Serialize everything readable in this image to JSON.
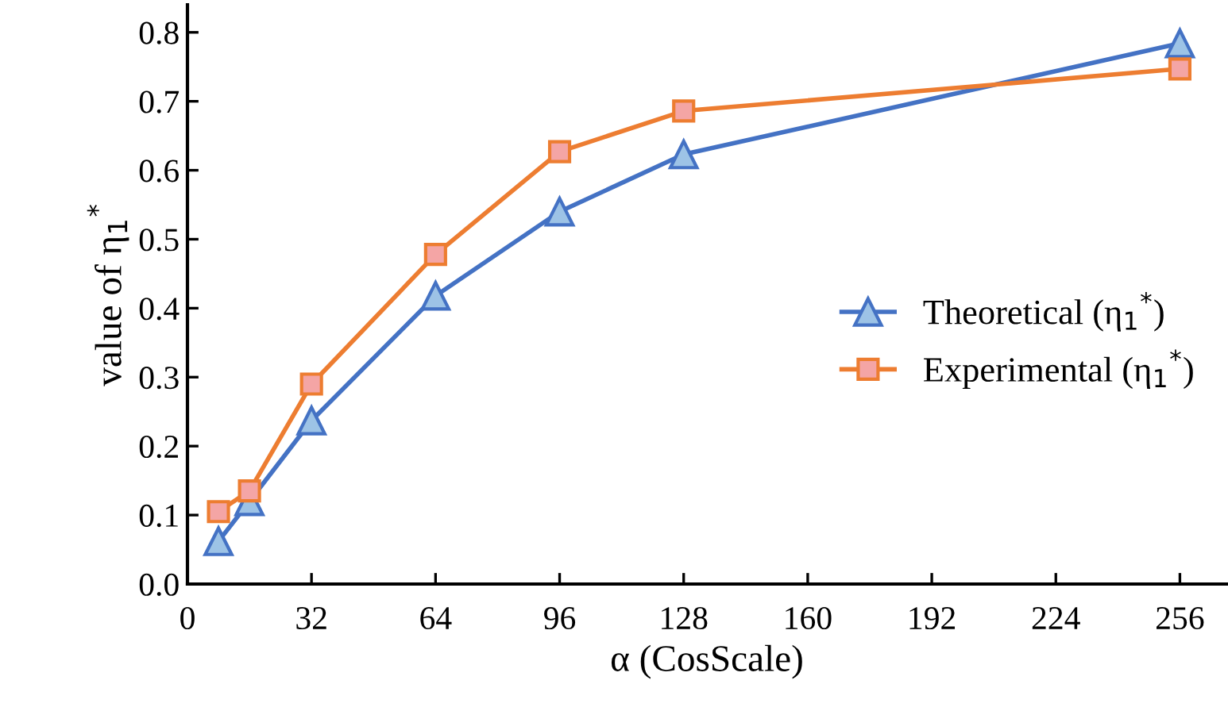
{
  "chart_data": {
    "type": "line",
    "xlabel": "α (CosScale)",
    "ylabel": "value of η$_{1}$$^{*}$",
    "x": [
      8,
      16,
      32,
      64,
      96,
      128,
      256
    ],
    "series": [
      {
        "name": "Theoretical (η$_{1}$$^{*}$)",
        "color": "#4472c4",
        "marker": "triangle",
        "values": [
          0.062,
          0.12,
          0.237,
          0.418,
          0.54,
          0.623,
          0.784
        ]
      },
      {
        "name": "Experimental (η$_{1}$$^{*}$)",
        "color": "#ed7d31",
        "marker": "square",
        "values": [
          0.105,
          0.135,
          0.29,
          0.478,
          0.627,
          0.686,
          0.747
        ]
      }
    ],
    "xlim": [
      0,
      268
    ],
    "xticks": [
      0,
      32,
      64,
      96,
      128,
      160,
      192,
      224,
      256
    ],
    "ylim": [
      0,
      0.84
    ],
    "yticks": [
      {
        "value": 0,
        "label": "0.0"
      },
      0.1,
      0.2,
      0.3,
      0.4,
      0.5,
      0.6,
      0.7,
      0.8
    ],
    "legend": "right",
    "grid": false,
    "line_style": "solid"
  }
}
